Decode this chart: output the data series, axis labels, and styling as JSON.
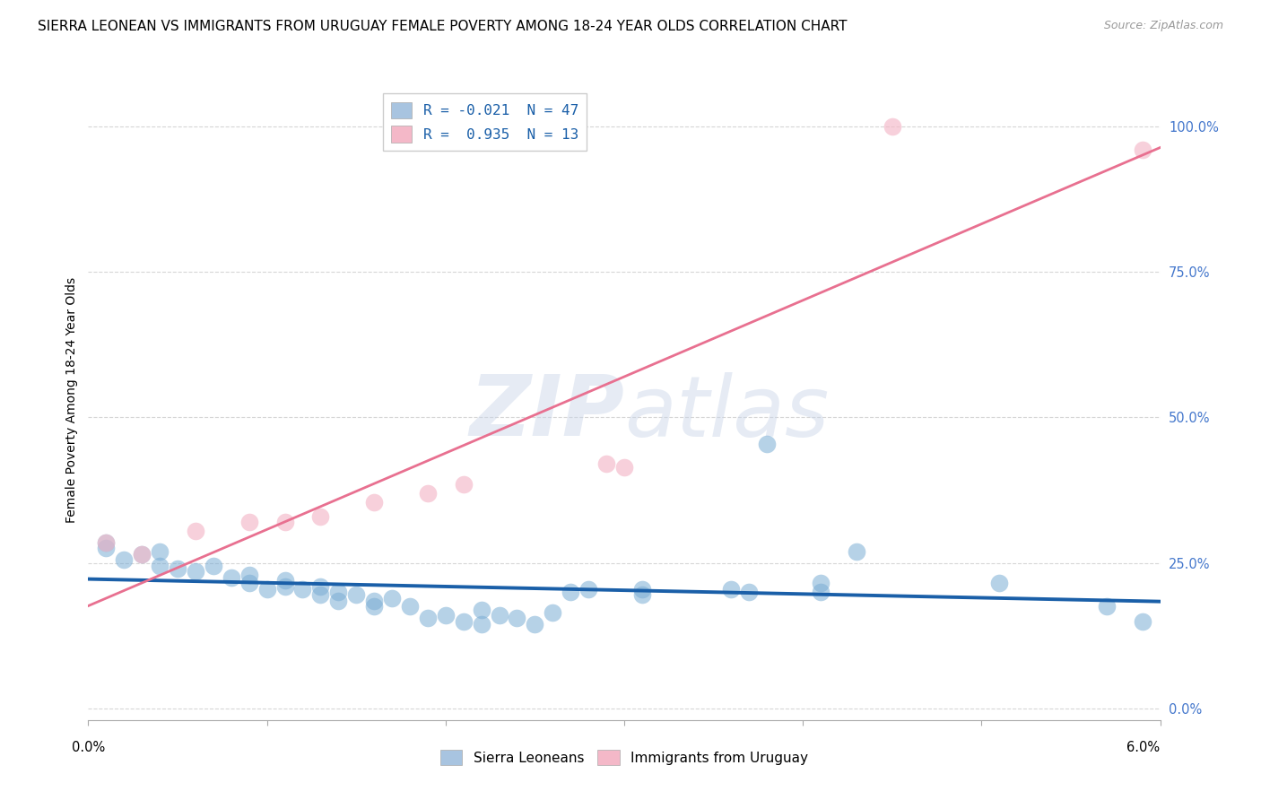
{
  "title": "SIERRA LEONEAN VS IMMIGRANTS FROM URUGUAY FEMALE POVERTY AMONG 18-24 YEAR OLDS CORRELATION CHART",
  "source": "Source: ZipAtlas.com",
  "ylabel": "Female Poverty Among 18-24 Year Olds",
  "yticks": [
    "0.0%",
    "25.0%",
    "50.0%",
    "75.0%",
    "100.0%"
  ],
  "ytick_vals": [
    0.0,
    0.25,
    0.5,
    0.75,
    1.0
  ],
  "xlim": [
    0.0,
    0.06
  ],
  "ylim": [
    -0.02,
    1.08
  ],
  "legend_entries": [
    {
      "label": "R = -0.021  N = 47",
      "color": "#a8c4e0"
    },
    {
      "label": "R =  0.935  N = 13",
      "color": "#f4b8c8"
    }
  ],
  "legend_labels_bottom": [
    "Sierra Leoneans",
    "Immigrants from Uruguay"
  ],
  "legend_colors_bottom": [
    "#a8c4e0",
    "#f4b8c8"
  ],
  "watermark": "ZIPatlas",
  "sierra_leone_color": "#7aadd4",
  "uruguay_color": "#f4b8c8",
  "sierra_leone_points": [
    [
      0.001,
      0.285
    ],
    [
      0.001,
      0.275
    ],
    [
      0.003,
      0.265
    ],
    [
      0.004,
      0.27
    ],
    [
      0.002,
      0.255
    ],
    [
      0.004,
      0.245
    ],
    [
      0.005,
      0.24
    ],
    [
      0.006,
      0.235
    ],
    [
      0.007,
      0.245
    ],
    [
      0.008,
      0.225
    ],
    [
      0.009,
      0.23
    ],
    [
      0.009,
      0.215
    ],
    [
      0.01,
      0.205
    ],
    [
      0.011,
      0.22
    ],
    [
      0.011,
      0.21
    ],
    [
      0.012,
      0.205
    ],
    [
      0.013,
      0.195
    ],
    [
      0.013,
      0.21
    ],
    [
      0.014,
      0.185
    ],
    [
      0.014,
      0.2
    ],
    [
      0.015,
      0.195
    ],
    [
      0.016,
      0.185
    ],
    [
      0.016,
      0.175
    ],
    [
      0.017,
      0.19
    ],
    [
      0.018,
      0.175
    ],
    [
      0.019,
      0.155
    ],
    [
      0.02,
      0.16
    ],
    [
      0.021,
      0.15
    ],
    [
      0.022,
      0.17
    ],
    [
      0.022,
      0.145
    ],
    [
      0.023,
      0.16
    ],
    [
      0.024,
      0.155
    ],
    [
      0.025,
      0.145
    ],
    [
      0.026,
      0.165
    ],
    [
      0.027,
      0.2
    ],
    [
      0.028,
      0.205
    ],
    [
      0.031,
      0.205
    ],
    [
      0.031,
      0.195
    ],
    [
      0.036,
      0.205
    ],
    [
      0.037,
      0.2
    ],
    [
      0.038,
      0.455
    ],
    [
      0.041,
      0.215
    ],
    [
      0.041,
      0.2
    ],
    [
      0.043,
      0.27
    ],
    [
      0.051,
      0.215
    ],
    [
      0.057,
      0.175
    ],
    [
      0.059,
      0.15
    ]
  ],
  "uruguay_points": [
    [
      0.001,
      0.285
    ],
    [
      0.003,
      0.265
    ],
    [
      0.006,
      0.305
    ],
    [
      0.009,
      0.32
    ],
    [
      0.011,
      0.32
    ],
    [
      0.013,
      0.33
    ],
    [
      0.016,
      0.355
    ],
    [
      0.019,
      0.37
    ],
    [
      0.021,
      0.385
    ],
    [
      0.029,
      0.42
    ],
    [
      0.03,
      0.415
    ],
    [
      0.045,
      1.0
    ],
    [
      0.059,
      0.96
    ]
  ],
  "blue_line_color": "#1a5fa8",
  "pink_line_color": "#e87090",
  "background_color": "#ffffff",
  "grid_color": "#cccccc",
  "title_fontsize": 11,
  "axis_label_fontsize": 10,
  "tick_fontsize": 10.5
}
